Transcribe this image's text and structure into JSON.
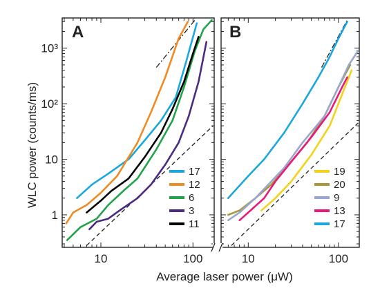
{
  "chart_data": [
    {
      "panel": "A",
      "type": "line",
      "xscale": "log",
      "yscale": "log",
      "xlim": [
        3.8,
        170
      ],
      "ylim": [
        0.26,
        3500
      ],
      "xticks": [
        "10",
        "100"
      ],
      "ylabel": "WLC power (counts/ms)",
      "yticks": [
        "1",
        "10",
        "10²",
        "10³"
      ],
      "series": [
        {
          "name": "17",
          "color": "#1aa7dc",
          "points": [
            [
              5.5,
              2.0
            ],
            [
              8,
              3.5
            ],
            [
              12,
              5.5
            ],
            [
              20,
              10
            ],
            [
              30,
              22
            ],
            [
              45,
              50
            ],
            [
              65,
              130
            ],
            [
              85,
              600
            ],
            [
              110,
              2800
            ]
          ]
        },
        {
          "name": "12",
          "color": "#f08a24",
          "points": [
            [
              4.2,
              0.7
            ],
            [
              5,
              1.1
            ],
            [
              7,
              1.5
            ],
            [
              10,
              2.5
            ],
            [
              15,
              5
            ],
            [
              25,
              20
            ],
            [
              35,
              70
            ],
            [
              50,
              300
            ],
            [
              70,
              1500
            ],
            [
              88,
              3000
            ]
          ]
        },
        {
          "name": "6",
          "color": "#22a24a",
          "points": [
            [
              4.3,
              0.35
            ],
            [
              6,
              0.6
            ],
            [
              9,
              0.85
            ],
            [
              12,
              1.5
            ],
            [
              18,
              2.8
            ],
            [
              25,
              4.5
            ],
            [
              40,
              15
            ],
            [
              60,
              50
            ],
            [
              80,
              200
            ],
            [
              105,
              900
            ],
            [
              130,
              2200
            ],
            [
              160,
              3200
            ]
          ]
        },
        {
          "name": "3",
          "color": "#4b2a82",
          "points": [
            [
              7.5,
              0.55
            ],
            [
              9,
              0.75
            ],
            [
              12,
              0.85
            ],
            [
              16,
              1.2
            ],
            [
              25,
              2.0
            ],
            [
              35,
              3.5
            ],
            [
              50,
              8
            ],
            [
              70,
              20
            ],
            [
              90,
              60
            ],
            [
              115,
              250
            ],
            [
              140,
              1300
            ]
          ]
        },
        {
          "name": "11",
          "color": "#000000",
          "points": [
            [
              7,
              1.1
            ],
            [
              10,
              1.8
            ],
            [
              13,
              2.7
            ],
            [
              20,
              4.5
            ],
            [
              30,
              11
            ],
            [
              45,
              30
            ],
            [
              60,
              80
            ],
            [
              80,
              250
            ],
            [
              100,
              800
            ],
            [
              115,
              1600
            ]
          ]
        }
      ],
      "reference_lines": [
        {
          "style": "dashed",
          "points": [
            [
              7,
              0.28
            ],
            [
              165,
              40
            ]
          ]
        },
        {
          "style": "dash-dot",
          "points": [
            [
              40,
              450
            ],
            [
              105,
              3200
            ]
          ]
        }
      ],
      "legend": {
        "placement": "bottom-right",
        "entries": [
          "17",
          "12",
          "6",
          "3",
          "11"
        ]
      }
    },
    {
      "panel": "B",
      "type": "line",
      "xscale": "log",
      "yscale": "log",
      "xlim": [
        5,
        170
      ],
      "ylim": [
        0.26,
        3500
      ],
      "xticks": [
        "10",
        "100"
      ],
      "series": [
        {
          "name": "19",
          "color": "#f2d21b",
          "points": [
            [
              14,
              1.2
            ],
            [
              20,
              2.0
            ],
            [
              30,
              4.0
            ],
            [
              50,
              12
            ],
            [
              80,
              40
            ],
            [
              110,
              150
            ],
            [
              140,
              400
            ]
          ]
        },
        {
          "name": "20",
          "color": "#a8983a",
          "points": [
            [
              6,
              1.0
            ],
            [
              8,
              1.2
            ],
            [
              12,
              2.0
            ],
            [
              18,
              3.5
            ],
            [
              28,
              8
            ],
            [
              45,
              20
            ],
            [
              70,
              60
            ],
            [
              100,
              200
            ],
            [
              135,
              500
            ]
          ]
        },
        {
          "name": "9",
          "color": "#9aa6d0",
          "points": [
            [
              6,
              0.8
            ],
            [
              8,
              1.1
            ],
            [
              12,
              2.0
            ],
            [
              18,
              4.0
            ],
            [
              25,
              7
            ],
            [
              40,
              20
            ],
            [
              70,
              60
            ],
            [
              100,
              200
            ],
            [
              130,
              500
            ],
            [
              165,
              900
            ]
          ]
        },
        {
          "name": "13",
          "color": "#e8197a",
          "points": [
            [
              8,
              0.8
            ],
            [
              10,
              1.1
            ],
            [
              15,
              2.0
            ],
            [
              20,
              4.0
            ],
            [
              30,
              9
            ],
            [
              50,
              25
            ],
            [
              80,
              70
            ],
            [
              110,
              200
            ],
            [
              125,
              300
            ]
          ]
        },
        {
          "name": "17",
          "color": "#1aa7dc",
          "points": [
            [
              6,
              2.0
            ],
            [
              10,
              5.0
            ],
            [
              15,
              10
            ],
            [
              25,
              30
            ],
            [
              40,
              100
            ],
            [
              60,
              300
            ],
            [
              80,
              700
            ],
            [
              100,
              1500
            ],
            [
              125,
              3000
            ]
          ]
        }
      ],
      "reference_lines": [
        {
          "style": "dashed",
          "points": [
            [
              6.5,
              0.28
            ],
            [
              165,
              45
            ]
          ]
        },
        {
          "style": "dash-dot",
          "points": [
            [
              65,
              450
            ],
            [
              125,
              3200
            ]
          ]
        }
      ],
      "legend": {
        "placement": "bottom-right",
        "entries": [
          "19",
          "20",
          "9",
          "13",
          "17"
        ]
      }
    }
  ],
  "shared": {
    "xlabel": "Average laser power (μW)"
  }
}
